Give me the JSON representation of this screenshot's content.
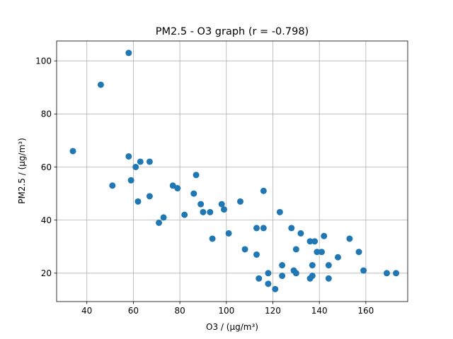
{
  "chart_data": {
    "type": "scatter",
    "title": "PM2.5 - O3 graph    (r = -0.798)",
    "xlabel": "O3 / (μg/m³)",
    "ylabel": "PM2.5 / (μg/m³)",
    "xlim": [
      27,
      178
    ],
    "ylim": [
      9.3,
      107.5
    ],
    "xticks": [
      40,
      60,
      80,
      100,
      120,
      140,
      160
    ],
    "yticks": [
      20,
      40,
      60,
      80,
      100
    ],
    "grid": true,
    "marker_color": "#1f77b4",
    "points": [
      [
        58,
        103
      ],
      [
        46,
        91
      ],
      [
        34,
        66
      ],
      [
        58,
        64
      ],
      [
        61,
        60
      ],
      [
        63,
        62
      ],
      [
        67,
        62
      ],
      [
        59,
        55
      ],
      [
        51,
        53
      ],
      [
        67,
        49
      ],
      [
        62,
        47
      ],
      [
        77,
        53
      ],
      [
        79,
        52
      ],
      [
        87,
        57
      ],
      [
        86,
        50
      ],
      [
        89,
        46
      ],
      [
        90,
        43
      ],
      [
        93,
        43
      ],
      [
        98,
        46
      ],
      [
        99,
        44
      ],
      [
        106,
        47
      ],
      [
        116,
        51
      ],
      [
        71,
        39
      ],
      [
        73,
        41
      ],
      [
        82,
        42
      ],
      [
        94,
        33
      ],
      [
        101,
        35
      ],
      [
        113,
        37
      ],
      [
        116,
        37
      ],
      [
        123,
        43
      ],
      [
        108,
        29
      ],
      [
        113,
        27
      ],
      [
        114,
        18
      ],
      [
        118,
        20
      ],
      [
        118,
        16
      ],
      [
        121,
        14
      ],
      [
        124,
        23
      ],
      [
        124,
        19
      ],
      [
        128,
        37
      ],
      [
        132,
        35
      ],
      [
        130,
        29
      ],
      [
        129,
        21
      ],
      [
        130,
        20
      ],
      [
        136,
        32
      ],
      [
        138,
        32
      ],
      [
        139,
        28
      ],
      [
        141,
        28
      ],
      [
        137,
        23
      ],
      [
        137,
        19
      ],
      [
        136,
        18
      ],
      [
        142,
        34
      ],
      [
        144,
        23
      ],
      [
        144,
        18
      ],
      [
        148,
        26
      ],
      [
        153,
        33
      ],
      [
        157,
        28
      ],
      [
        159,
        21
      ],
      [
        169,
        20
      ],
      [
        173,
        20
      ]
    ]
  }
}
